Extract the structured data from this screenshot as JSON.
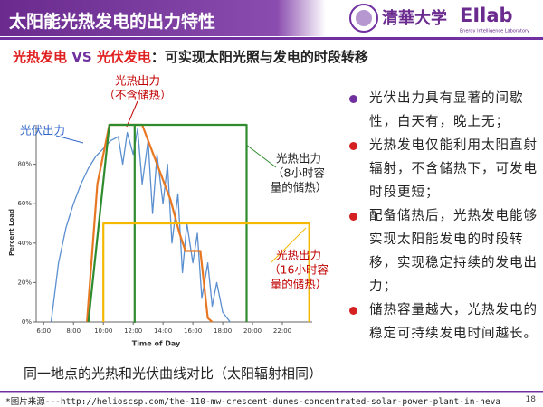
{
  "header": {
    "title": "太阳能光热发电的出力特性",
    "logo_text": "清華大学",
    "lab": "EIlab",
    "lab_sub": "Energy Intelligence Laboratory"
  },
  "subtitle": {
    "a": "光热发电",
    "vs": "VS",
    "b": "光伏发电",
    "rest": "：可实现太阳光照与发电的时段转移"
  },
  "chart_data": {
    "type": "line",
    "xlabel": "Time of Day",
    "ylabel": "Percent Load",
    "xlim": [
      5.5,
      24
    ],
    "ylim": [
      0,
      100
    ],
    "xticks": [
      {
        "value": 6,
        "label": "6:00"
      },
      {
        "value": 8,
        "label": "8:00"
      },
      {
        "value": 10,
        "label": "10:00"
      },
      {
        "value": 12,
        "label": "12:00"
      },
      {
        "value": 14,
        "label": "14:00"
      },
      {
        "value": 16,
        "label": "16:00"
      },
      {
        "value": 18,
        "label": "18:00"
      },
      {
        "value": 20,
        "label": "20:00"
      },
      {
        "value": 22,
        "label": "22:00"
      }
    ],
    "yticks": [
      {
        "value": 0,
        "label": "0%"
      },
      {
        "value": 20,
        "label": "20%"
      },
      {
        "value": 40,
        "label": "40%"
      },
      {
        "value": 60,
        "label": "60%"
      },
      {
        "value": 80,
        "label": "80%"
      }
    ],
    "grid": false,
    "series": [
      {
        "color": "#5b8fcf",
        "x": [
          6.5,
          7,
          7.5,
          8,
          8.5,
          9,
          9.5,
          10,
          10.5,
          11,
          11.3,
          11.6,
          12,
          12.3,
          12.6,
          13,
          13.3,
          13.6,
          14,
          14.3,
          14.6,
          15,
          15.3,
          15.6,
          16,
          16.3,
          16.6,
          17,
          17.3,
          17.6,
          18,
          18.5
        ],
        "values": [
          0,
          30,
          48,
          60,
          70,
          78,
          84,
          88,
          92,
          94,
          80,
          96,
          85,
          98,
          70,
          92,
          55,
          85,
          60,
          80,
          40,
          65,
          25,
          50,
          30,
          45,
          12,
          30,
          8,
          20,
          5,
          0
        ]
      },
      {
        "color": "#e87722",
        "x": [
          8.9,
          9.6,
          10.4,
          12.6,
          13.5,
          14.5,
          15.1,
          15.5,
          16.5,
          17,
          17.3
        ],
        "values": [
          0,
          70,
          100,
          100,
          82,
          62,
          45,
          36,
          36,
          2,
          0
        ]
      },
      {
        "color": "#2e8b2e",
        "x": [
          9,
          10.4,
          12.1,
          12.1,
          12.1,
          19.6,
          19.6
        ],
        "values": [
          0,
          100,
          100,
          0,
          100,
          100,
          0
        ]
      },
      {
        "color": "#f5b800",
        "x": [
          10,
          10,
          23.8,
          23.8
        ],
        "values": [
          0,
          50,
          50,
          0
        ]
      }
    ],
    "annotations": [
      {
        "lines": [
          "光伏出力"
        ]
      },
      {
        "lines": [
          "光热出力",
          "（不含储热）"
        ]
      },
      {
        "lines": [
          "光热出力",
          "（8小时容",
          "量的储热）"
        ]
      },
      {
        "lines": [
          "光热出力",
          "（16小时容",
          "量的储热）"
        ]
      }
    ]
  },
  "bullets": [
    "光伏出力具有显著的间歇性，白天有，晚上无；",
    "光热发电仅能利用太阳直射辐射，不含储热下，可发电时段更短；",
    "配备储热后，光热发电能够实现太阳能发电的时段转移，实现稳定持续的发电出力；",
    "储热容量越大，光热发电的稳定可持续发电时间越长。"
  ],
  "caption": "同一地点的光热和光伏曲线对比（太阳辐射相同）",
  "footer": {
    "source": "*图片来源---http://helioscsp.com/the-110-mw-crescent-dunes-concentrated-solar-power-plant-in-neva",
    "page": "18"
  }
}
